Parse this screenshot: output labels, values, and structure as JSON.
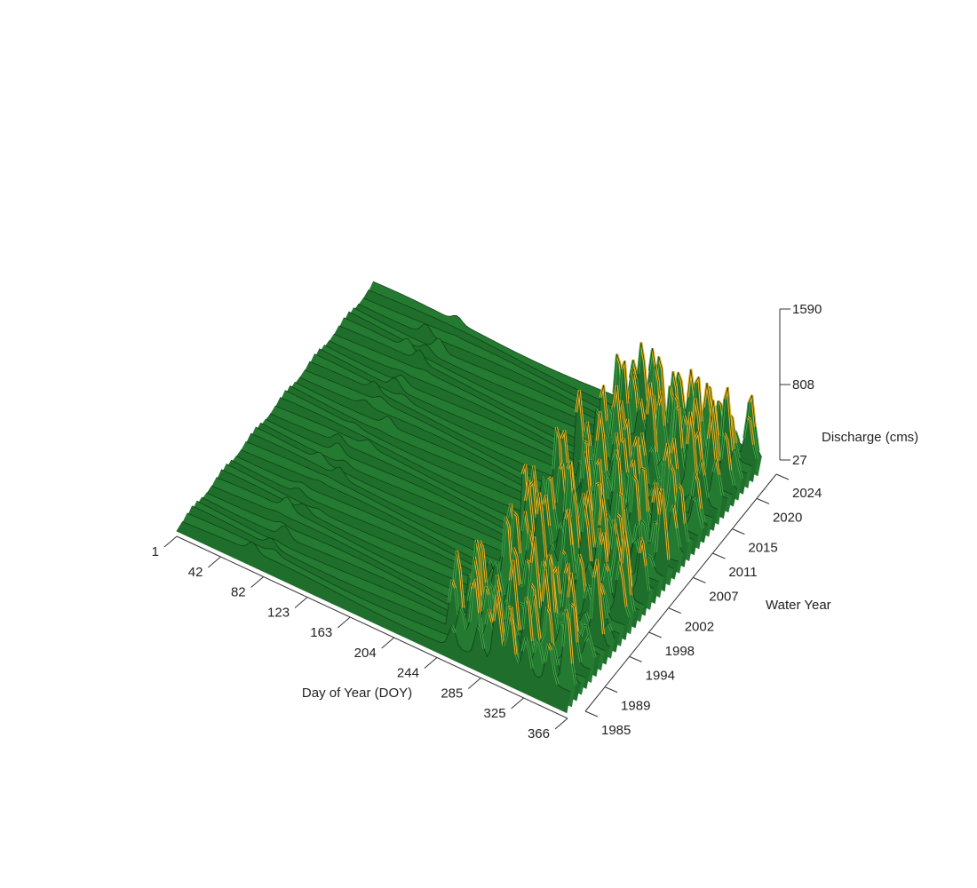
{
  "chart_data": {
    "type": "surface3d",
    "title": "",
    "x_axis": {
      "label": "Day of Year (DOY)",
      "ticks": [
        1,
        42,
        82,
        123,
        163,
        204,
        244,
        285,
        325,
        366
      ],
      "range": [
        1,
        366
      ]
    },
    "y_axis": {
      "label": "Water Year",
      "ticks": [
        1985,
        1989,
        1994,
        1998,
        2002,
        2007,
        2011,
        2015,
        2020,
        2024
      ],
      "range": [
        1985,
        2024
      ]
    },
    "z_axis": {
      "label": "Discharge (cms)",
      "ticks": [
        27,
        808,
        1590
      ],
      "range": [
        27,
        1590
      ]
    },
    "colors": {
      "base": "#1e6b2a",
      "mid": "#3fa447",
      "high": "#e8b020",
      "peak": "#c0281c",
      "highlight": "#ffffff"
    },
    "grid": false,
    "legend": "none"
  }
}
